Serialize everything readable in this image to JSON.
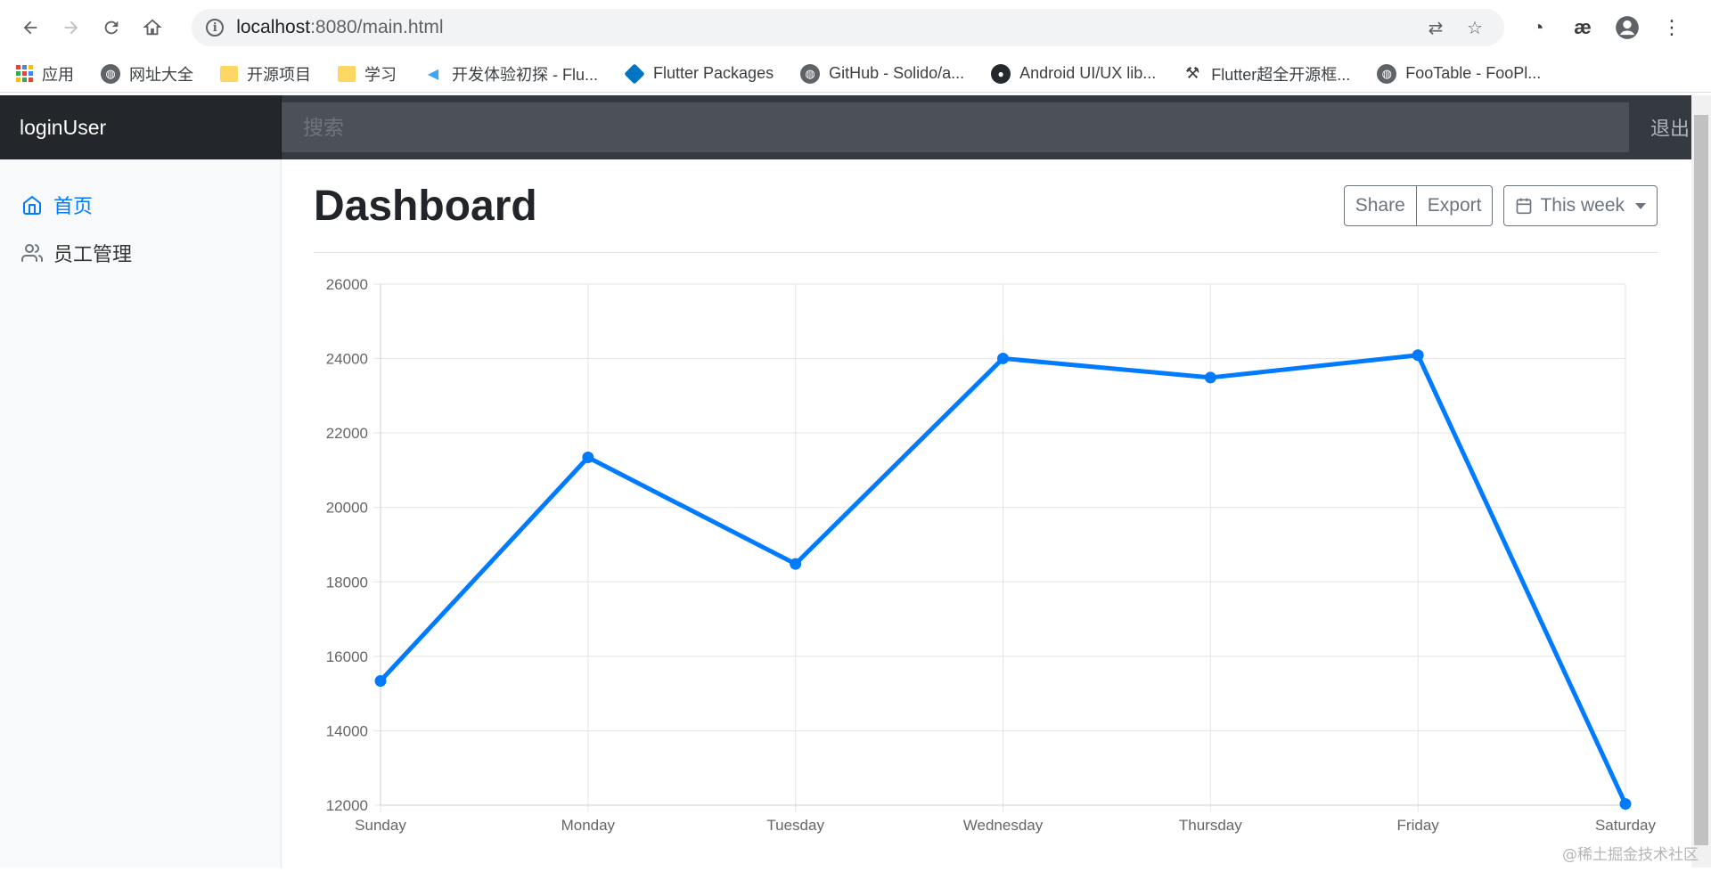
{
  "browser": {
    "url_host": "localhost",
    "url_rest": ":8080/main.html",
    "bookmarks": [
      {
        "icon": "apps-icon",
        "label": "应用"
      },
      {
        "icon": "globe-icon",
        "label": "网址大全"
      },
      {
        "icon": "folder-icon",
        "label": "开源项目"
      },
      {
        "icon": "folder-icon",
        "label": "学习"
      },
      {
        "icon": "flutter-icon",
        "label": "开发体验初探 - Flu..."
      },
      {
        "icon": "dart-icon",
        "label": "Flutter Packages"
      },
      {
        "icon": "globe-icon",
        "label": "GitHub - Solido/a..."
      },
      {
        "icon": "github-icon",
        "label": "Android UI/UX lib..."
      },
      {
        "icon": "hammer-icon",
        "label": "Flutter超全开源框..."
      },
      {
        "icon": "globe-icon",
        "label": "FooTable - FooPl..."
      }
    ]
  },
  "app": {
    "brand": "loginUser",
    "search_placeholder": "搜索",
    "signout": "退出",
    "sidebar": {
      "items": [
        {
          "label": "首页",
          "active": true,
          "icon": "home-icon"
        },
        {
          "label": "员工管理",
          "active": false,
          "icon": "users-icon"
        }
      ]
    },
    "title": "Dashboard",
    "buttons": {
      "share": "Share",
      "export": "Export",
      "range": "This week"
    },
    "accent": "#007bff",
    "watermark": "@稀土掘金技术社区"
  },
  "chart_data": {
    "type": "line",
    "categories": [
      "Sunday",
      "Monday",
      "Tuesday",
      "Wednesday",
      "Thursday",
      "Friday",
      "Saturday"
    ],
    "series": [
      {
        "values": [
          15339,
          21345,
          18483,
          24003,
          23489,
          24092,
          12034
        ]
      }
    ],
    "ylim": [
      12000,
      26000
    ],
    "yticks": [
      12000,
      14000,
      16000,
      18000,
      20000,
      22000,
      24000,
      26000
    ],
    "color": "#007bff",
    "grid": true
  }
}
